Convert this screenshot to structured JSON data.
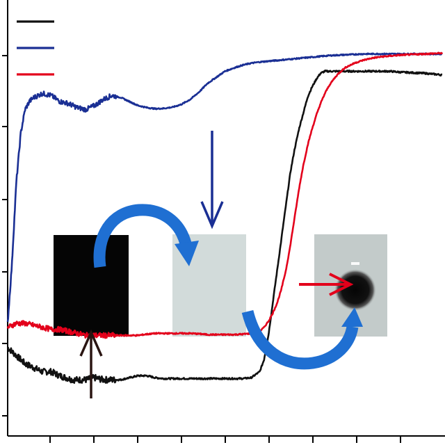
{
  "chart_data": {
    "type": "line",
    "title": "",
    "xlabel": "",
    "ylabel": "",
    "grid": false,
    "legend": {
      "position": "top-left",
      "labels_shown": false
    },
    "xlim": [
      0,
      100
    ],
    "ylim": [
      0,
      100
    ],
    "series": [
      {
        "color": "#111111",
        "x": [
          0,
          2,
          4,
          6,
          8,
          10,
          12,
          15,
          18,
          20,
          22,
          24,
          26,
          28,
          30,
          32,
          34,
          36,
          38,
          40,
          42,
          44,
          46,
          48,
          50,
          52,
          54,
          56,
          58,
          59,
          60,
          61,
          62,
          63,
          64,
          65,
          66,
          67,
          68,
          69,
          70,
          71,
          72,
          73,
          74,
          75,
          76,
          78,
          80,
          82,
          84,
          86,
          88,
          90,
          92,
          94,
          96,
          98,
          100
        ],
        "values": [
          19,
          17,
          15,
          14,
          13,
          13,
          12,
          11,
          11,
          11.5,
          11,
          11,
          11,
          11.5,
          12,
          12,
          11.5,
          11.3,
          11.3,
          11.3,
          11.3,
          11.3,
          11.3,
          11.3,
          11.3,
          11.3,
          11.3,
          11.5,
          13,
          16,
          22,
          30,
          38,
          46,
          54,
          62,
          68,
          73,
          77,
          81,
          83.5,
          85.5,
          87,
          87.5,
          87.5,
          87.5,
          87.5,
          87.5,
          87.5,
          87.5,
          87.5,
          87.5,
          87.5,
          87.3,
          87.2,
          87.1,
          87,
          86.8,
          86.6
        ]
      },
      {
        "color": "#1a2f94",
        "x": [
          0,
          1,
          2,
          3,
          4,
          5,
          6,
          8,
          10,
          12,
          14,
          16,
          18,
          20,
          22,
          24,
          26,
          28,
          30,
          32,
          34,
          36,
          38,
          40,
          42,
          44,
          46,
          48,
          50,
          52,
          54,
          56,
          58,
          60,
          62,
          64,
          66,
          68,
          70,
          72,
          74,
          76,
          78,
          80,
          82,
          84,
          86,
          88,
          90,
          92,
          94,
          96,
          98,
          100
        ],
        "values": [
          25,
          40,
          60,
          72,
          78,
          80,
          81,
          82,
          81.5,
          80,
          79.5,
          78.5,
          78,
          79,
          80.5,
          81.5,
          81,
          80,
          79,
          78.5,
          78.2,
          78.3,
          78.6,
          79.3,
          80.5,
          82.3,
          84.5,
          86,
          87.5,
          88.3,
          89,
          89.5,
          89.8,
          90,
          90.2,
          90.4,
          90.6,
          90.8,
          91,
          91.2,
          91.4,
          91.5,
          91.6,
          91.7,
          91.8,
          91.8,
          91.8,
          91.8,
          91.8,
          91.8,
          91.8,
          91.8,
          91.8,
          91.8
        ]
      },
      {
        "color": "#e3001b",
        "x": [
          0,
          2,
          4,
          6,
          8,
          10,
          12,
          14,
          16,
          18,
          20,
          22,
          24,
          26,
          28,
          30,
          32,
          34,
          36,
          38,
          40,
          42,
          44,
          46,
          48,
          50,
          52,
          54,
          56,
          58,
          59,
          60,
          61,
          62,
          63,
          64,
          65,
          66,
          67,
          68,
          69,
          70,
          71,
          72,
          73,
          74,
          75,
          76,
          77,
          78,
          80,
          82,
          84,
          86,
          88,
          90,
          92,
          94,
          96,
          98,
          100
        ],
        "values": [
          24,
          25,
          25,
          24.5,
          24,
          23.5,
          23.5,
          23,
          22.5,
          22,
          22,
          22,
          22,
          22,
          22,
          22,
          22.3,
          22.5,
          22.5,
          22.5,
          22.5,
          22.5,
          22.4,
          22.2,
          22.2,
          22.2,
          22.2,
          22.3,
          22.5,
          23,
          24,
          25.5,
          27.5,
          30,
          33.5,
          38,
          44,
          51,
          58,
          64,
          69,
          73,
          76.5,
          79.5,
          82,
          84,
          85.5,
          86.8,
          87.8,
          88.6,
          89.6,
          90.3,
          90.8,
          91.1,
          91.3,
          91.5,
          91.6,
          91.7,
          91.8,
          91.9,
          92
        ]
      }
    ]
  },
  "insets": [
    {
      "name": "black-square"
    },
    {
      "name": "pale-square"
    },
    {
      "name": "dark-spot-square"
    }
  ]
}
